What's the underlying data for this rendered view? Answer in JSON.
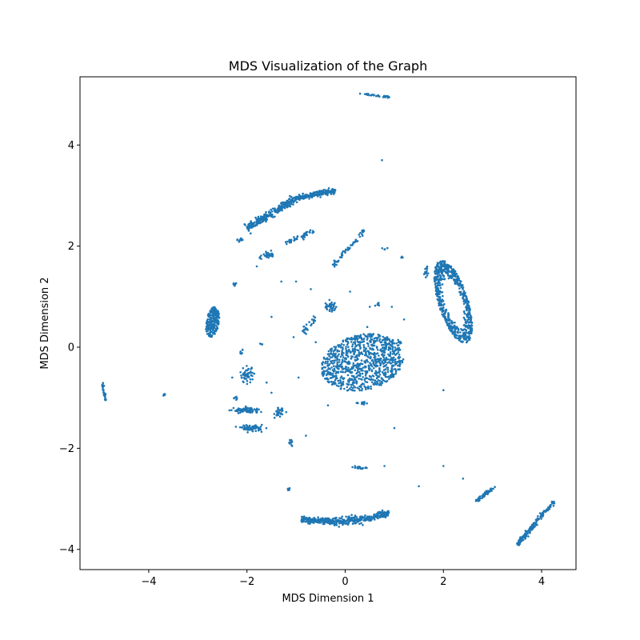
{
  "chart_data": {
    "type": "scatter",
    "title": "MDS Visualization of the Graph",
    "xlabel": "MDS Dimension 1",
    "ylabel": "MDS Dimension 2",
    "xlim": [
      -5.4,
      4.7
    ],
    "ylim": [
      -4.4,
      5.35
    ],
    "xticks": [
      -4,
      -2,
      0,
      2,
      4
    ],
    "yticks": [
      -4,
      -2,
      0,
      2,
      4
    ],
    "xtick_labels": [
      "−4",
      "−2",
      "0",
      "2",
      "4"
    ],
    "ytick_labels": [
      "−4",
      "−2",
      "0",
      "2",
      "4"
    ],
    "grid": false,
    "color": "#1f77b4",
    "clusters": [
      {
        "shape": "segment",
        "from": [
          0.3,
          5.02
        ],
        "to": [
          0.9,
          4.95
        ],
        "count": 30,
        "spread": 0.01
      },
      {
        "shape": "segment",
        "from": [
          -2.0,
          2.35
        ],
        "to": [
          -1.0,
          2.95
        ],
        "count": 260,
        "spread": 0.035
      },
      {
        "shape": "segment",
        "from": [
          -1.0,
          2.95
        ],
        "to": [
          -0.2,
          3.1
        ],
        "count": 200,
        "spread": 0.025
      },
      {
        "shape": "segment",
        "from": [
          -1.2,
          2.05
        ],
        "to": [
          -0.65,
          2.3
        ],
        "count": 50,
        "spread": 0.025
      },
      {
        "shape": "segment",
        "from": [
          -0.25,
          1.6
        ],
        "to": [
          0.4,
          2.33
        ],
        "count": 60,
        "spread": 0.018
      },
      {
        "shape": "segment",
        "from": [
          -1.75,
          1.78
        ],
        "to": [
          -1.45,
          1.85
        ],
        "count": 30,
        "spread": 0.03
      },
      {
        "shape": "segment",
        "from": [
          -2.2,
          2.1
        ],
        "to": [
          -2.1,
          2.15
        ],
        "count": 10,
        "spread": 0.02
      },
      {
        "shape": "ellipse",
        "cx": 0.35,
        "cy": -0.3,
        "rx": 0.85,
        "ry": 0.55,
        "angle": 12,
        "count": 900
      },
      {
        "shape": "ellipse",
        "cx": 2.2,
        "cy": 0.9,
        "rx": 0.85,
        "ry": 0.3,
        "angle": 108,
        "count": 650,
        "ring": true
      },
      {
        "shape": "ellipse",
        "cx": -2.7,
        "cy": 0.5,
        "rx": 0.3,
        "ry": 0.13,
        "angle": 80,
        "count": 220
      },
      {
        "shape": "segment",
        "from": [
          -0.9,
          -3.4
        ],
        "to": [
          0.9,
          -3.28
        ],
        "count": 420,
        "spread": 0.035,
        "bend": -0.1
      },
      {
        "shape": "segment",
        "from": [
          3.5,
          -3.9
        ],
        "to": [
          4.25,
          -3.05
        ],
        "count": 170,
        "spread": 0.02
      },
      {
        "shape": "segment",
        "from": [
          2.65,
          -3.05
        ],
        "to": [
          3.05,
          -2.75
        ],
        "count": 60,
        "spread": 0.02
      },
      {
        "shape": "segment",
        "from": [
          -4.95,
          -0.7
        ],
        "to": [
          -4.88,
          -1.05
        ],
        "count": 30,
        "spread": 0.01
      },
      {
        "shape": "segment",
        "from": [
          -3.7,
          -0.9
        ],
        "to": [
          -3.67,
          -0.97
        ],
        "count": 6,
        "spread": 0.01
      },
      {
        "shape": "blob",
        "cx": -2.0,
        "cy": -1.25,
        "rx": 0.22,
        "ry": 0.05,
        "count": 80
      },
      {
        "shape": "blob",
        "cx": -1.9,
        "cy": -1.6,
        "rx": 0.18,
        "ry": 0.05,
        "count": 70
      },
      {
        "shape": "blob",
        "cx": -2.0,
        "cy": -0.55,
        "rx": 0.12,
        "ry": 0.12,
        "count": 55
      },
      {
        "shape": "blob",
        "cx": -1.35,
        "cy": -1.3,
        "rx": 0.07,
        "ry": 0.08,
        "count": 35
      },
      {
        "shape": "blob",
        "cx": 0.3,
        "cy": -2.38,
        "rx": 0.1,
        "ry": 0.02,
        "count": 20
      },
      {
        "shape": "blob",
        "cx": -0.3,
        "cy": 0.8,
        "rx": 0.12,
        "ry": 0.08,
        "count": 40
      },
      {
        "shape": "segment",
        "from": [
          -0.85,
          0.3
        ],
        "to": [
          -0.6,
          0.58
        ],
        "count": 25,
        "spread": 0.03
      },
      {
        "shape": "blob",
        "cx": 0.35,
        "cy": -1.1,
        "rx": 0.1,
        "ry": 0.03,
        "count": 15
      },
      {
        "shape": "blob",
        "cx": -1.1,
        "cy": -1.9,
        "rx": 0.05,
        "ry": 0.08,
        "count": 12
      },
      {
        "shape": "blob",
        "cx": 1.65,
        "cy": 1.5,
        "rx": 0.04,
        "ry": 0.12,
        "count": 14
      },
      {
        "shape": "blob",
        "cx": 0.65,
        "cy": 0.85,
        "rx": 0.06,
        "ry": 0.03,
        "count": 8
      },
      {
        "shape": "blob",
        "cx": 1.1,
        "cy": 0.1,
        "rx": 0.03,
        "ry": 0.05,
        "count": 8
      },
      {
        "shape": "blob",
        "cx": -2.25,
        "cy": 1.25,
        "rx": 0.03,
        "ry": 0.03,
        "count": 6
      },
      {
        "shape": "blob",
        "cx": -2.2,
        "cy": -1.0,
        "rx": 0.05,
        "ry": 0.04,
        "count": 8
      },
      {
        "shape": "blob",
        "cx": -1.15,
        "cy": -2.82,
        "rx": 0.03,
        "ry": 0.03,
        "count": 5
      },
      {
        "shape": "blob",
        "cx": -2.1,
        "cy": -0.1,
        "rx": 0.03,
        "ry": 0.05,
        "count": 6
      },
      {
        "shape": "blob",
        "cx": 1.15,
        "cy": 1.78,
        "rx": 0.02,
        "ry": 0.03,
        "count": 4
      },
      {
        "shape": "blob",
        "cx": 0.8,
        "cy": 1.95,
        "rx": 0.04,
        "ry": 0.02,
        "count": 4
      },
      {
        "shape": "blob",
        "cx": -1.7,
        "cy": 0.05,
        "rx": 0.03,
        "ry": 0.03,
        "count": 4
      }
    ],
    "singles": [
      [
        0.75,
        3.7
      ],
      [
        -0.7,
        1.15
      ],
      [
        0.1,
        1.1
      ],
      [
        -1.0,
        1.3
      ],
      [
        -1.3,
        1.3
      ],
      [
        -1.8,
        1.6
      ],
      [
        1.2,
        0.55
      ],
      [
        0.5,
        0.8
      ],
      [
        0.95,
        0.8
      ],
      [
        -1.5,
        0.6
      ],
      [
        -1.05,
        0.2
      ],
      [
        2.0,
        -0.85
      ],
      [
        -0.35,
        -1.15
      ],
      [
        -1.5,
        -0.9
      ],
      [
        -0.8,
        -1.75
      ],
      [
        1.0,
        -1.6
      ],
      [
        0.8,
        -2.35
      ],
      [
        1.5,
        -2.75
      ],
      [
        2.0,
        -2.35
      ],
      [
        2.4,
        -2.6
      ],
      [
        0.2,
        -2.35
      ],
      [
        -0.95,
        -0.6
      ],
      [
        -1.6,
        -0.7
      ],
      [
        -2.3,
        -0.6
      ],
      [
        -0.6,
        0.1
      ],
      [
        0.45,
        0.4
      ]
    ]
  }
}
